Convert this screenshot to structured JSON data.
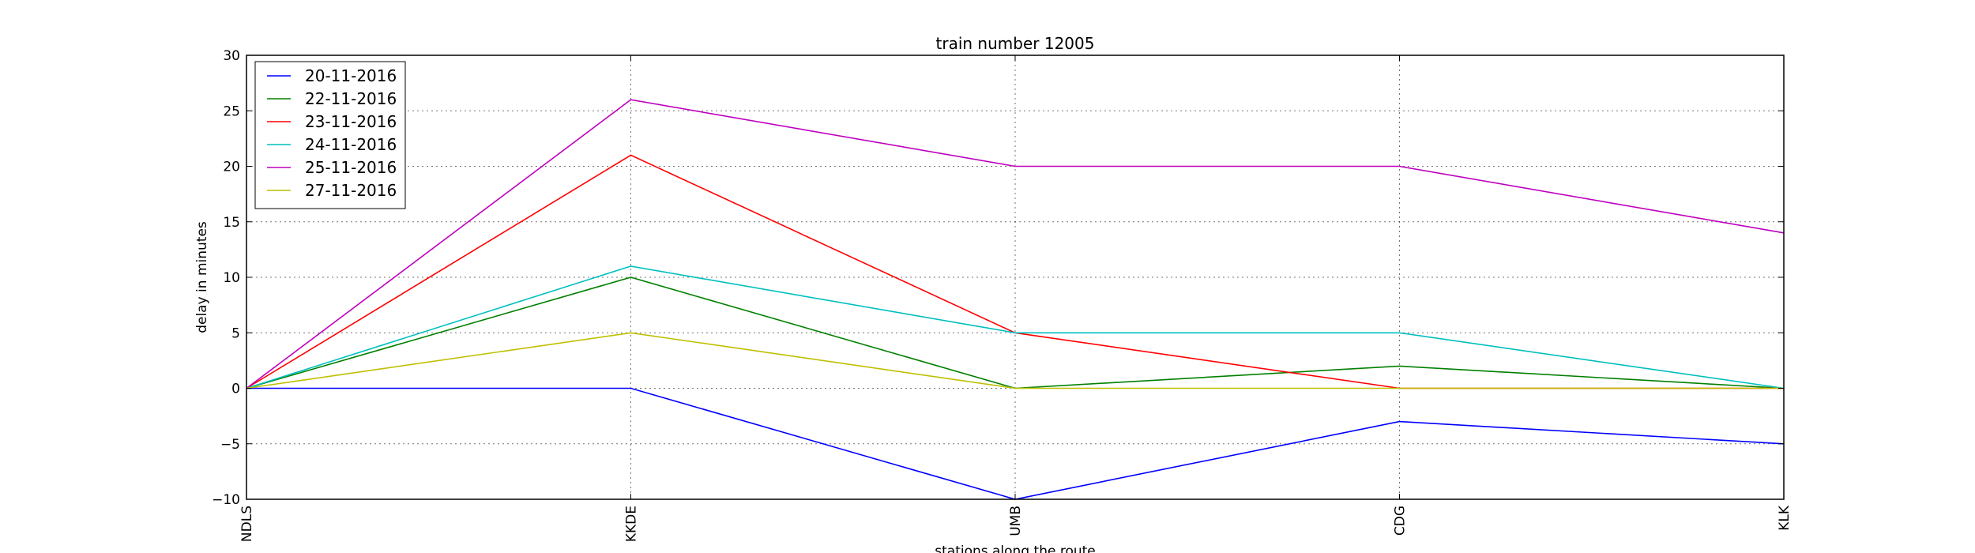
{
  "chart_data": {
    "type": "line",
    "title": "train number 12005",
    "xlabel": "stations along the route",
    "ylabel": "delay in minutes",
    "categories": [
      "NDLS",
      "KKDE",
      "UMB",
      "CDG",
      "KLK"
    ],
    "ylim": [
      -10,
      30
    ],
    "yticks": [
      -10,
      -5,
      0,
      5,
      10,
      15,
      20,
      25,
      30
    ],
    "grid": true,
    "legend_position": "top-left",
    "series": [
      {
        "name": "20-11-2016",
        "color": "#0000ff",
        "values": [
          0,
          0,
          -10,
          -3,
          -5
        ]
      },
      {
        "name": "22-11-2016",
        "color": "#008000",
        "values": [
          0,
          10,
          0,
          2,
          0
        ]
      },
      {
        "name": "23-11-2016",
        "color": "#ff0000",
        "values": [
          0,
          21,
          5,
          0,
          0
        ]
      },
      {
        "name": "24-11-2016",
        "color": "#00bfbf",
        "values": [
          0,
          11,
          5,
          5,
          0
        ]
      },
      {
        "name": "25-11-2016",
        "color": "#bf00bf",
        "values": [
          0,
          26,
          20,
          20,
          14
        ]
      },
      {
        "name": "27-11-2016",
        "color": "#bfbf00",
        "values": [
          0,
          5,
          0,
          0,
          0
        ]
      }
    ]
  }
}
